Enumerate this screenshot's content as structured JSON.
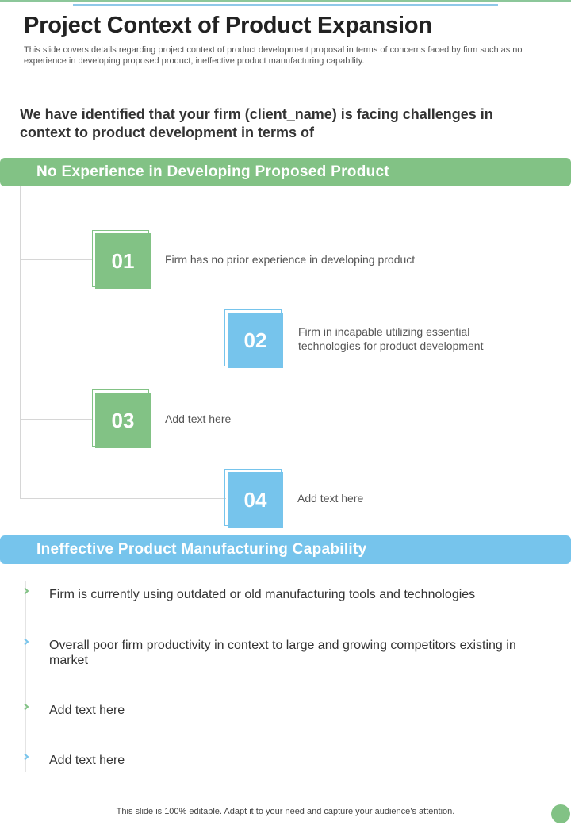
{
  "header": {
    "title": "Project Context of Product Expansion",
    "subtitle": "This slide covers details regarding project context of product development proposal in terms of concerns faced by firm such as no experience in developing proposed product, ineffective product manufacturing capability."
  },
  "intro": "We have identified that your firm (client_name) is facing challenges in context to product development in terms of",
  "section1": {
    "heading": "No Experience in Developing Proposed Product",
    "items": [
      {
        "number": "01",
        "text": "Firm has no prior experience in developing product"
      },
      {
        "number": "02",
        "text": "Firm in incapable utilizing essential technologies for product development"
      },
      {
        "number": "03",
        "text": "Add text here"
      },
      {
        "number": "04",
        "text": "Add text here"
      }
    ]
  },
  "section2": {
    "heading": "Ineffective Product Manufacturing Capability",
    "bullets": [
      {
        "text": "Firm is currently  using outdated or old manufacturing  tools and technologies",
        "chevron_color": "#82c285"
      },
      {
        "text": "Overall poor firm productivity  in context to large and growing competitors existing in market",
        "chevron_color": "#76c4ec"
      },
      {
        "text": "Add text here",
        "chevron_color": "#82c285"
      },
      {
        "text": "Add text here",
        "chevron_color": "#76c4ec"
      }
    ]
  },
  "footer": "This slide is 100% editable. Adapt it to your need and capture your audience’s attention.",
  "colors": {
    "green": "#82c285",
    "blue": "#76c4ec"
  }
}
